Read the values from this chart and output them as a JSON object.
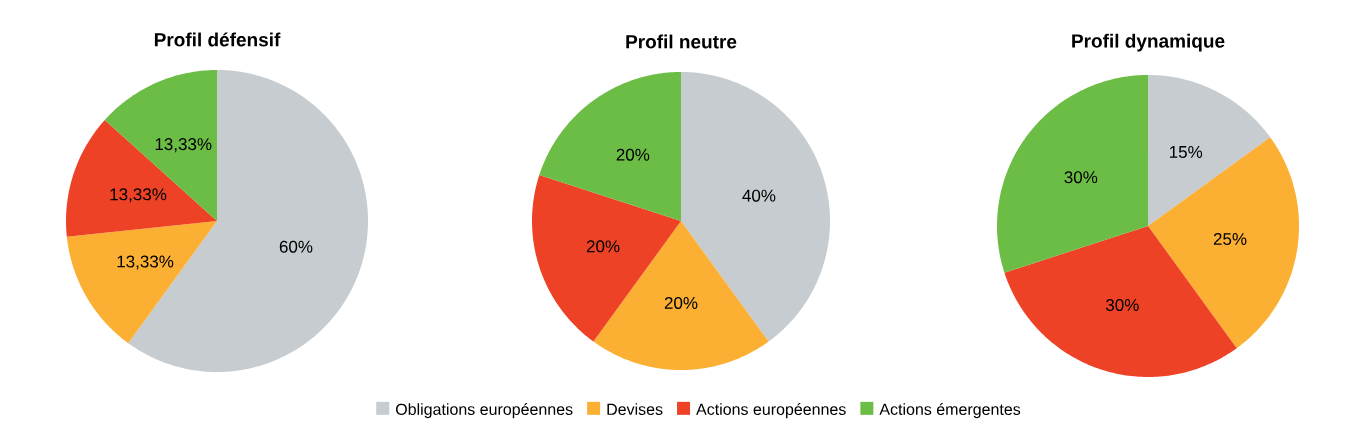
{
  "chart_data": [
    {
      "type": "pie",
      "title": "Profil défensif",
      "categories": [
        null,
        null,
        null,
        null
      ],
      "values": [
        60,
        13.33,
        13.33,
        13.33
      ],
      "colors": [
        "#c6cccf",
        "#fbb034",
        "#ee4226",
        "#6cbd45"
      ],
      "value_labels": [
        "60%",
        "13,33%",
        "13,33%",
        "13,33%"
      ]
    },
    {
      "type": "pie",
      "title": "Profil neutre",
      "categories": [
        "Obligations européennes",
        "Devises",
        "Actions européennes",
        "Actions émergentes"
      ],
      "values": [
        40,
        20,
        20,
        20
      ],
      "colors": [
        "#c6cccf",
        "#fbb034",
        "#ee4226",
        "#6cbd45"
      ],
      "value_labels": [
        "40%",
        "20%",
        "20%",
        "20%"
      ],
      "legend": "bottom"
    },
    {
      "type": "pie",
      "title": "Profil dynamique",
      "categories": [
        null,
        null,
        null,
        null
      ],
      "values": [
        15,
        25,
        30,
        30
      ],
      "colors": [
        "#c6cccf",
        "#fbb034",
        "#ee4226",
        "#6cbd45"
      ],
      "value_labels": [
        "15%",
        "25%",
        "30%",
        "30%"
      ]
    }
  ]
}
